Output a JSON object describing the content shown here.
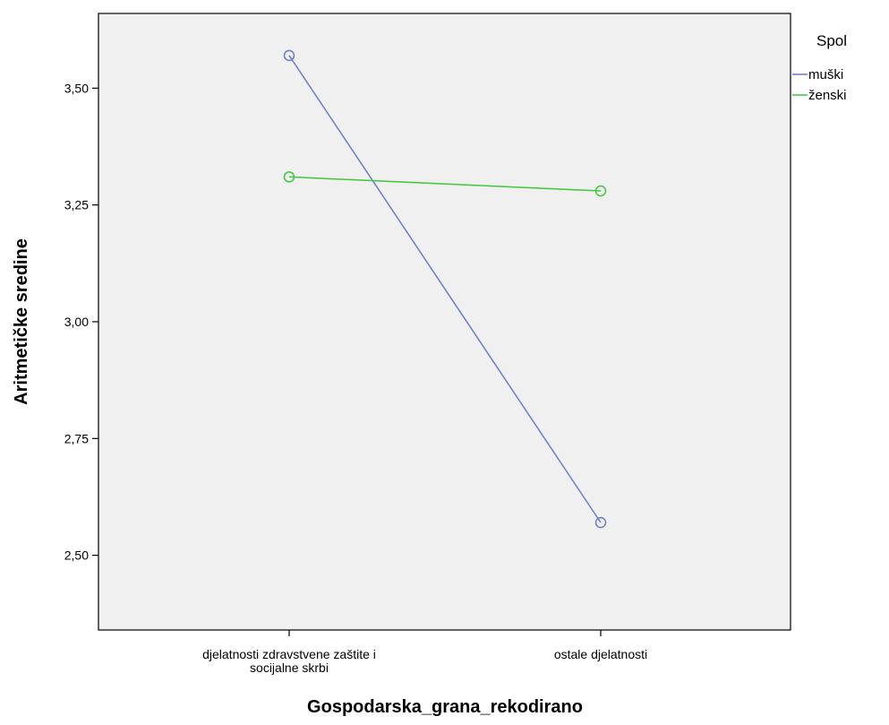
{
  "chart_data": {
    "type": "line",
    "title": "",
    "xlabel": "Gospodarska_grana_rekodirano",
    "ylabel": "Aritmetičke sredine",
    "categories": [
      [
        "djelatnosti zdravstvene zaštite i",
        "socijalne skrbi"
      ],
      [
        "ostale djelatnosti"
      ]
    ],
    "ylim": [
      2.34,
      3.66
    ],
    "yticks": [
      2.5,
      2.75,
      3.0,
      3.25,
      3.5
    ],
    "ytick_labels": [
      "2,50",
      "2,75",
      "3,00",
      "3,25",
      "3,50"
    ],
    "grid": false,
    "plot_background": "#f0f0f0",
    "legend": {
      "title": "Spol",
      "placement": "right-top"
    },
    "series": [
      {
        "name": "muški",
        "color": "#6a7dc9",
        "values": [
          3.57,
          2.57
        ]
      },
      {
        "name": "ženski",
        "color": "#3cc93c",
        "values": [
          3.31,
          3.28
        ]
      }
    ]
  }
}
